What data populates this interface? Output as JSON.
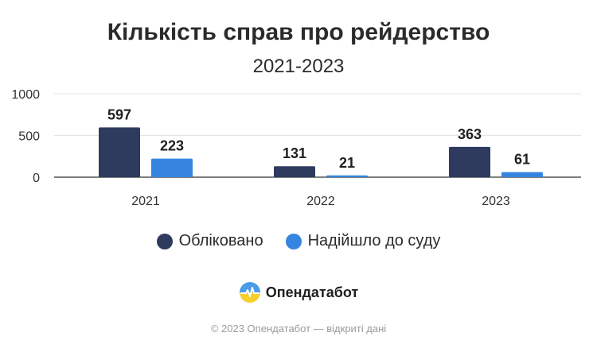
{
  "chart_data": {
    "type": "bar",
    "title": "Кількість справ про рейдерство",
    "subtitle": "2021-2023",
    "categories": [
      "2021",
      "2022",
      "2023"
    ],
    "series": [
      {
        "name": "Обліковано",
        "values": [
          597,
          131,
          363
        ],
        "color": "#2e3b5e"
      },
      {
        "name": "Надійшло до суду",
        "values": [
          223,
          21,
          61
        ],
        "color": "#3585e0"
      }
    ],
    "y_ticks": [
      "0",
      "500",
      "1000"
    ],
    "ylim": [
      0,
      1000
    ],
    "grid": true,
    "legend_position": "bottom"
  },
  "brand": {
    "name": "Опендатабот",
    "logo_icon": "opendatabot-logo-icon"
  },
  "footer": {
    "text": "© 2023 Опендатабот — відкриті дані"
  }
}
